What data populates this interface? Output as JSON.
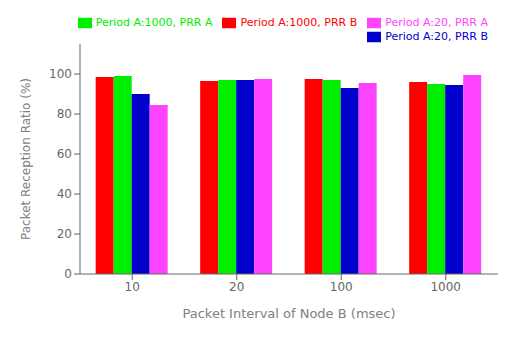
{
  "chart_data": {
    "type": "bar",
    "categories": [
      "10",
      "20",
      "100",
      "1000"
    ],
    "series": [
      {
        "name": "Period A:1000, PRR B",
        "color": "#ff0000",
        "values": [
          98.5,
          96.5,
          97.5,
          96.0
        ]
      },
      {
        "name": "Period A:1000, PRR A",
        "color": "#00ee00",
        "values": [
          99.0,
          97.0,
          97.0,
          95.0
        ]
      },
      {
        "name": "Period A:20, PRR B",
        "color": "#0000cc",
        "values": [
          90.0,
          97.0,
          93.0,
          94.5
        ]
      },
      {
        "name": "Period A:20, PRR A",
        "color": "#ff44ff",
        "values": [
          84.5,
          97.5,
          95.5,
          99.5
        ]
      }
    ],
    "xlabel": "Packet Interval of Node B (msec)",
    "ylabel": "Packet Reception Ratio (%)",
    "ylim": [
      0,
      115
    ],
    "yticks": [
      0,
      20,
      40,
      60,
      80,
      100
    ],
    "grid": false,
    "legend": "upper right"
  }
}
